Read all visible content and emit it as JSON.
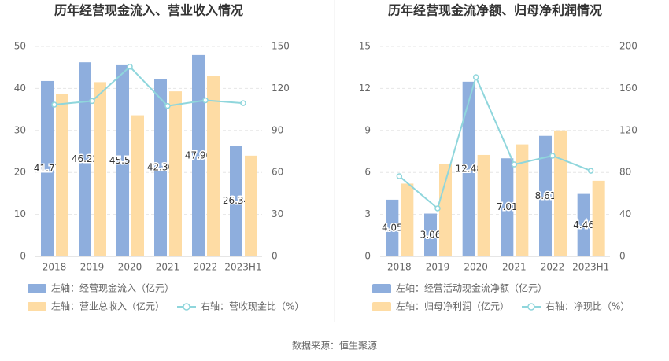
{
  "chart_data": [
    {
      "type": "bar",
      "title": "历年经营现金流入、营业收入情况",
      "categories": [
        "2018",
        "2019",
        "2020",
        "2021",
        "2022",
        "2023H1"
      ],
      "ylim": [
        0,
        50
      ],
      "yticks": [
        0,
        10,
        20,
        30,
        40,
        50
      ],
      "y2lim": [
        0,
        150
      ],
      "y2ticks": [
        0,
        30,
        60,
        90,
        120,
        150
      ],
      "grid": true,
      "series": [
        {
          "name": "左轴：经营现金流入（亿元）",
          "type": "bar",
          "color": "#8eaedd",
          "values": [
            41.77,
            46.22,
            45.52,
            42.3,
            47.96,
            26.34
          ],
          "value_labels": [
            "41.77",
            "46.22",
            "45.52",
            "42.30",
            "47.96",
            "26.34"
          ]
        },
        {
          "name": "左轴：营业总收入（亿元）",
          "type": "bar",
          "color": "#fedca4",
          "values": [
            38.6,
            41.5,
            33.6,
            39.3,
            43.0,
            24.0
          ]
        },
        {
          "name": "右轴：营收现金比（%）",
          "type": "line",
          "axis": "y2",
          "color": "#8fd6dc",
          "values": [
            108.4,
            111,
            135.5,
            107.5,
            111.5,
            109.5
          ]
        }
      ]
    },
    {
      "type": "bar",
      "title": "历年经营现金流净额、归母净利润情况",
      "categories": [
        "2018",
        "2019",
        "2020",
        "2021",
        "2022",
        "2023H1"
      ],
      "ylim": [
        0,
        15
      ],
      "yticks": [
        0,
        3,
        6,
        9,
        12,
        15
      ],
      "y2lim": [
        0,
        200
      ],
      "y2ticks": [
        0,
        40,
        80,
        120,
        160,
        200
      ],
      "grid": true,
      "series": [
        {
          "name": "左轴：经营活动现金流净额（亿元）",
          "type": "bar",
          "color": "#8eaedd",
          "values": [
            4.05,
            3.06,
            12.48,
            7.01,
            8.61,
            4.46
          ],
          "value_labels": [
            "4.05",
            "3.06",
            "12.48",
            "7.01",
            "8.61",
            "4.46"
          ]
        },
        {
          "name": "左轴：归母净利润（亿元）",
          "type": "bar",
          "color": "#fedca4",
          "values": [
            5.2,
            6.6,
            7.25,
            8.0,
            9.0,
            5.4
          ]
        },
        {
          "name": "右轴：净现比（%）",
          "type": "line",
          "axis": "y2",
          "color": "#8fd6dc",
          "values": [
            76.4,
            45.7,
            170.8,
            87.6,
            95.9,
            81.6
          ]
        }
      ]
    }
  ],
  "source": "数据来源：恒生聚源"
}
